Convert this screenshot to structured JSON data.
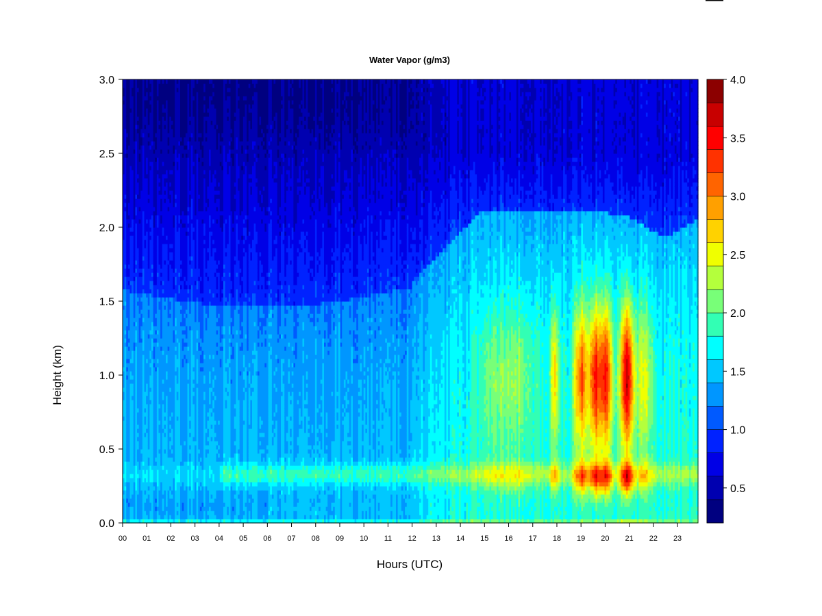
{
  "chart_data": {
    "type": "heatmap",
    "title": "Water Vapor (g/m3)",
    "xlabel": "Hours (UTC)",
    "ylabel": "Height (km)",
    "xlim": [
      0,
      23.85
    ],
    "ylim": [
      0,
      3.0
    ],
    "x_ticks": [
      "00",
      "01",
      "02",
      "03",
      "04",
      "05",
      "06",
      "07",
      "08",
      "09",
      "10",
      "11",
      "12",
      "13",
      "14",
      "15",
      "16",
      "17",
      "18",
      "19",
      "20",
      "21",
      "22",
      "23"
    ],
    "y_ticks": [
      "0.0",
      "0.5",
      "1.0",
      "1.5",
      "2.0",
      "2.5",
      "3.0"
    ],
    "colorbar": {
      "range": [
        0.2,
        4.0
      ],
      "ticks": [
        "0.5",
        "1.0",
        "1.5",
        "2.0",
        "2.5",
        "3.0",
        "3.5",
        "4.0"
      ],
      "levels": [
        {
          "from": 0.2,
          "to": 0.4,
          "color": "#000080"
        },
        {
          "from": 0.4,
          "to": 0.6,
          "color": "#0000b0"
        },
        {
          "from": 0.6,
          "to": 0.8,
          "color": "#0000e6"
        },
        {
          "from": 0.8,
          "to": 1.0,
          "color": "#0022ff"
        },
        {
          "from": 1.0,
          "to": 1.2,
          "color": "#005aff"
        },
        {
          "from": 1.2,
          "to": 1.4,
          "color": "#0096ff"
        },
        {
          "from": 1.4,
          "to": 1.6,
          "color": "#00c8ff"
        },
        {
          "from": 1.6,
          "to": 1.8,
          "color": "#00ffff"
        },
        {
          "from": 1.8,
          "to": 2.0,
          "color": "#32ffb4"
        },
        {
          "from": 2.0,
          "to": 2.2,
          "color": "#78ff78"
        },
        {
          "from": 2.2,
          "to": 2.4,
          "color": "#b4ff3c"
        },
        {
          "from": 2.4,
          "to": 2.6,
          "color": "#f0ff00"
        },
        {
          "from": 2.6,
          "to": 2.8,
          "color": "#ffd200"
        },
        {
          "from": 2.8,
          "to": 3.0,
          "color": "#ffa000"
        },
        {
          "from": 3.0,
          "to": 3.2,
          "color": "#ff6400"
        },
        {
          "from": 3.2,
          "to": 3.4,
          "color": "#ff3200"
        },
        {
          "from": 3.4,
          "to": 3.6,
          "color": "#ff0000"
        },
        {
          "from": 3.6,
          "to": 3.8,
          "color": "#c80000"
        },
        {
          "from": 3.8,
          "to": 4.0,
          "color": "#8c0000"
        }
      ]
    }
  }
}
